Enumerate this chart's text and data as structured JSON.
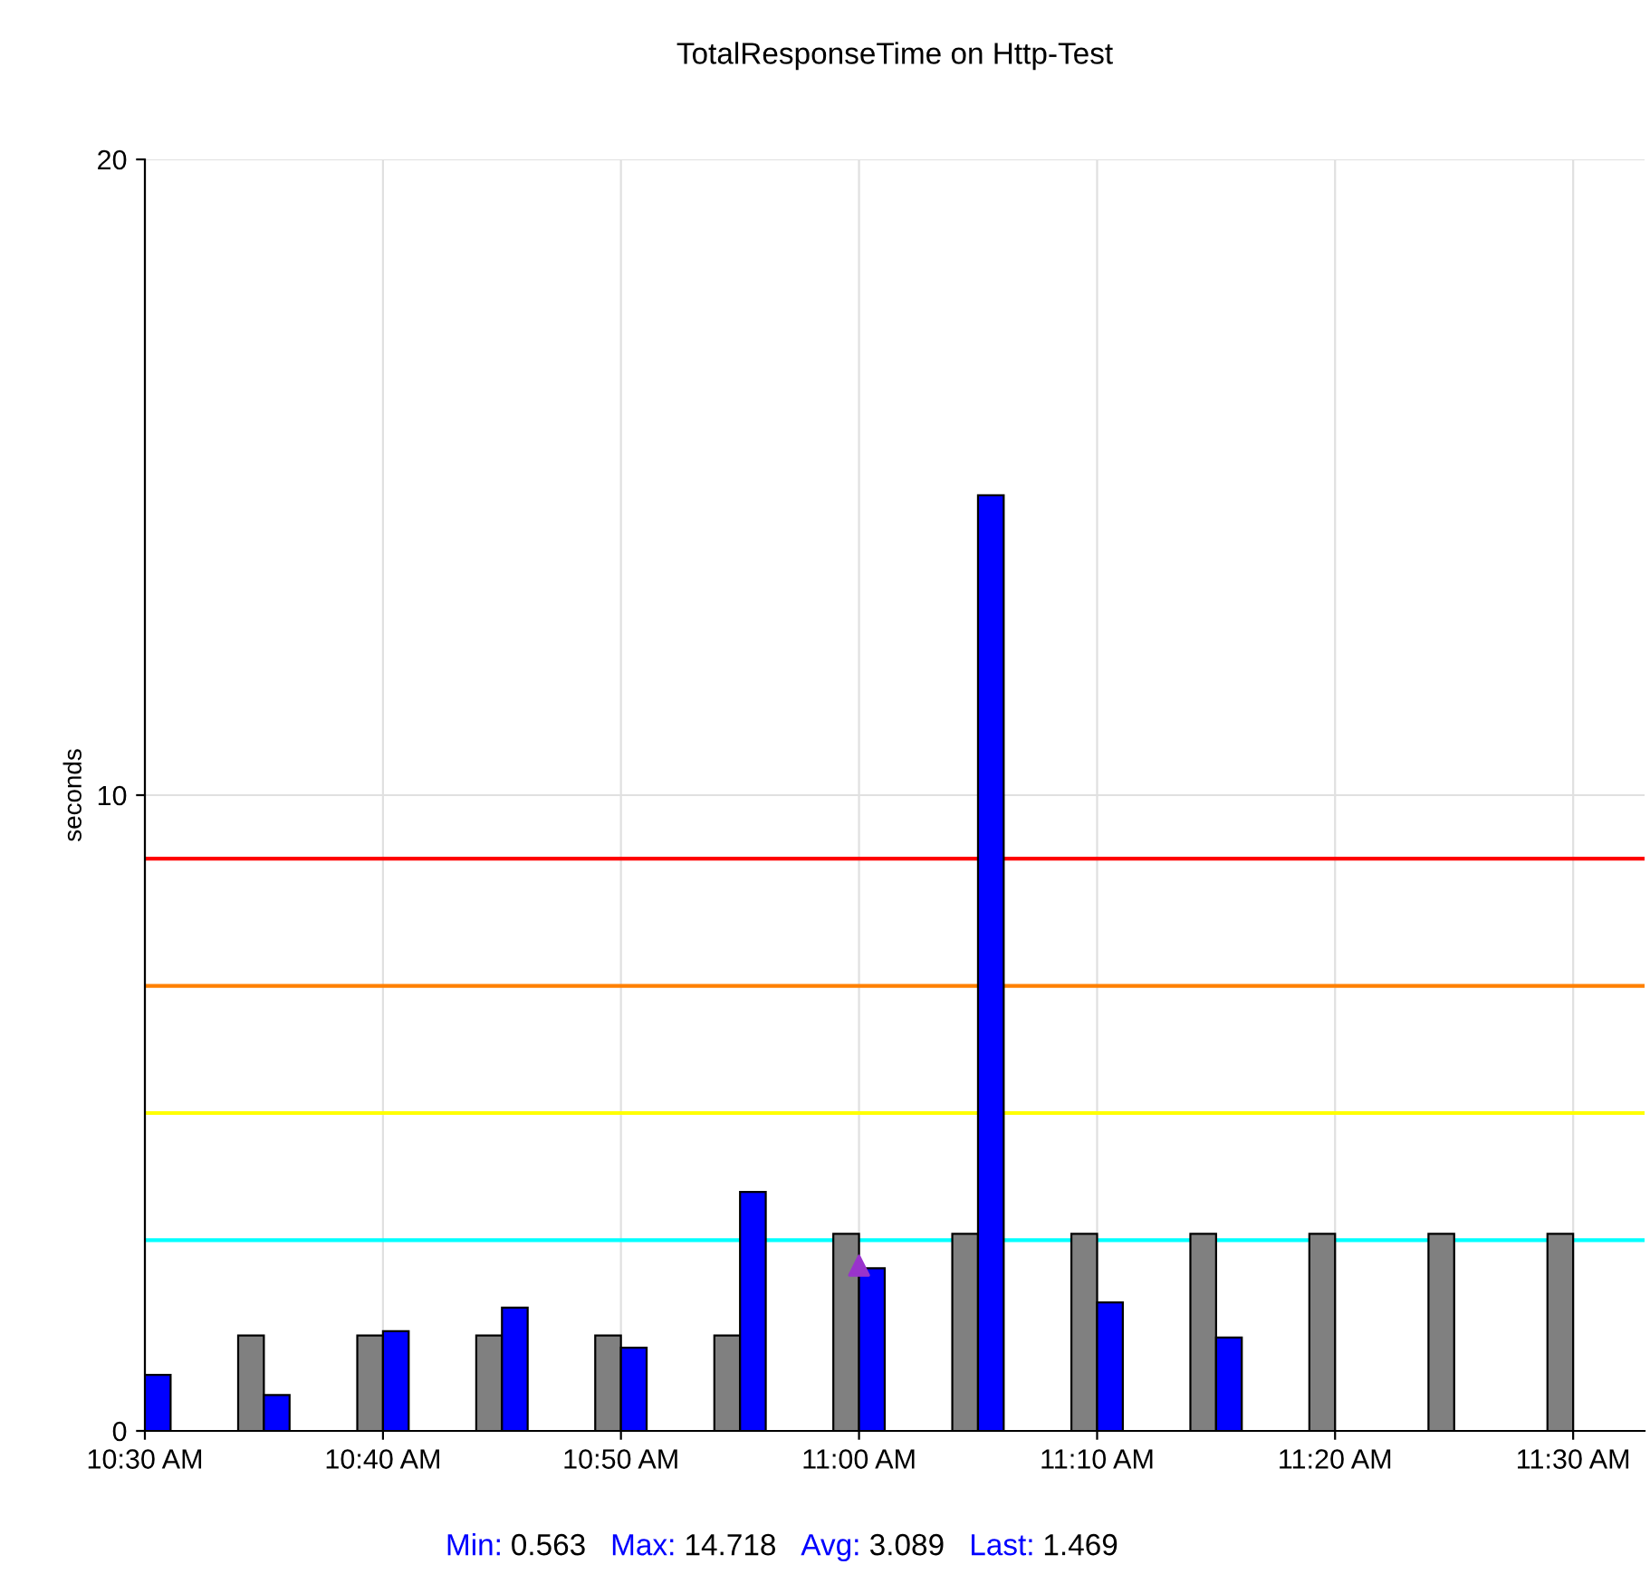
{
  "chart_data": {
    "type": "bar",
    "title": "TotalResponseTime on Http-Test",
    "ylabel": "seconds",
    "x": [
      10.5,
      10.5833,
      10.6667,
      10.75,
      10.8333,
      10.9167,
      11.0,
      11.0833,
      11.1667,
      11.25,
      11.3333,
      11.4167,
      11.5
    ],
    "series": [
      {
        "color": "#808080",
        "values": [
          null,
          1.5,
          1.5,
          1.5,
          1.5,
          1.5,
          3.1,
          3.1,
          3.1,
          3.1,
          3.1,
          3.1,
          3.1
        ]
      },
      {
        "color": "#0000ff",
        "values": [
          0.88,
          0.563,
          1.57,
          1.94,
          1.31,
          3.76,
          2.56,
          14.718,
          2.02,
          1.469,
          null,
          null,
          null
        ]
      },
      {
        "type": "scatter",
        "color": "#9933cc",
        "marker": "triangle",
        "x": [
          11.0
        ],
        "values": [
          2.6
        ]
      }
    ],
    "ref_lines": [
      {
        "axis": "y",
        "value": 9,
        "color": "#ff0000"
      },
      {
        "axis": "y",
        "value": 7,
        "color": "#ff8000"
      },
      {
        "axis": "y",
        "value": 5,
        "color": "#ffff00"
      },
      {
        "axis": "y",
        "value": 3,
        "color": "#00ffff"
      }
    ],
    "xlim": [
      10.5,
      11.55
    ],
    "xticks": [
      {
        "value": 10.5,
        "label": "10:30 AM"
      },
      {
        "value": 10.6667,
        "label": "10:40 AM"
      },
      {
        "value": 10.8333,
        "label": "10:50 AM"
      },
      {
        "value": 11.0,
        "label": "11:00 AM"
      },
      {
        "value": 11.1667,
        "label": "11:10 AM"
      },
      {
        "value": 11.3333,
        "label": "11:20 AM"
      },
      {
        "value": 11.5,
        "label": "11:30 AM"
      }
    ],
    "ylim": [
      0,
      20
    ],
    "yticks": [
      0,
      10,
      20
    ],
    "grid": true,
    "annotations": [
      "Min: 0.563",
      "Max: 14.718",
      "Avg: 3.089",
      "Last: 1.469"
    ]
  }
}
